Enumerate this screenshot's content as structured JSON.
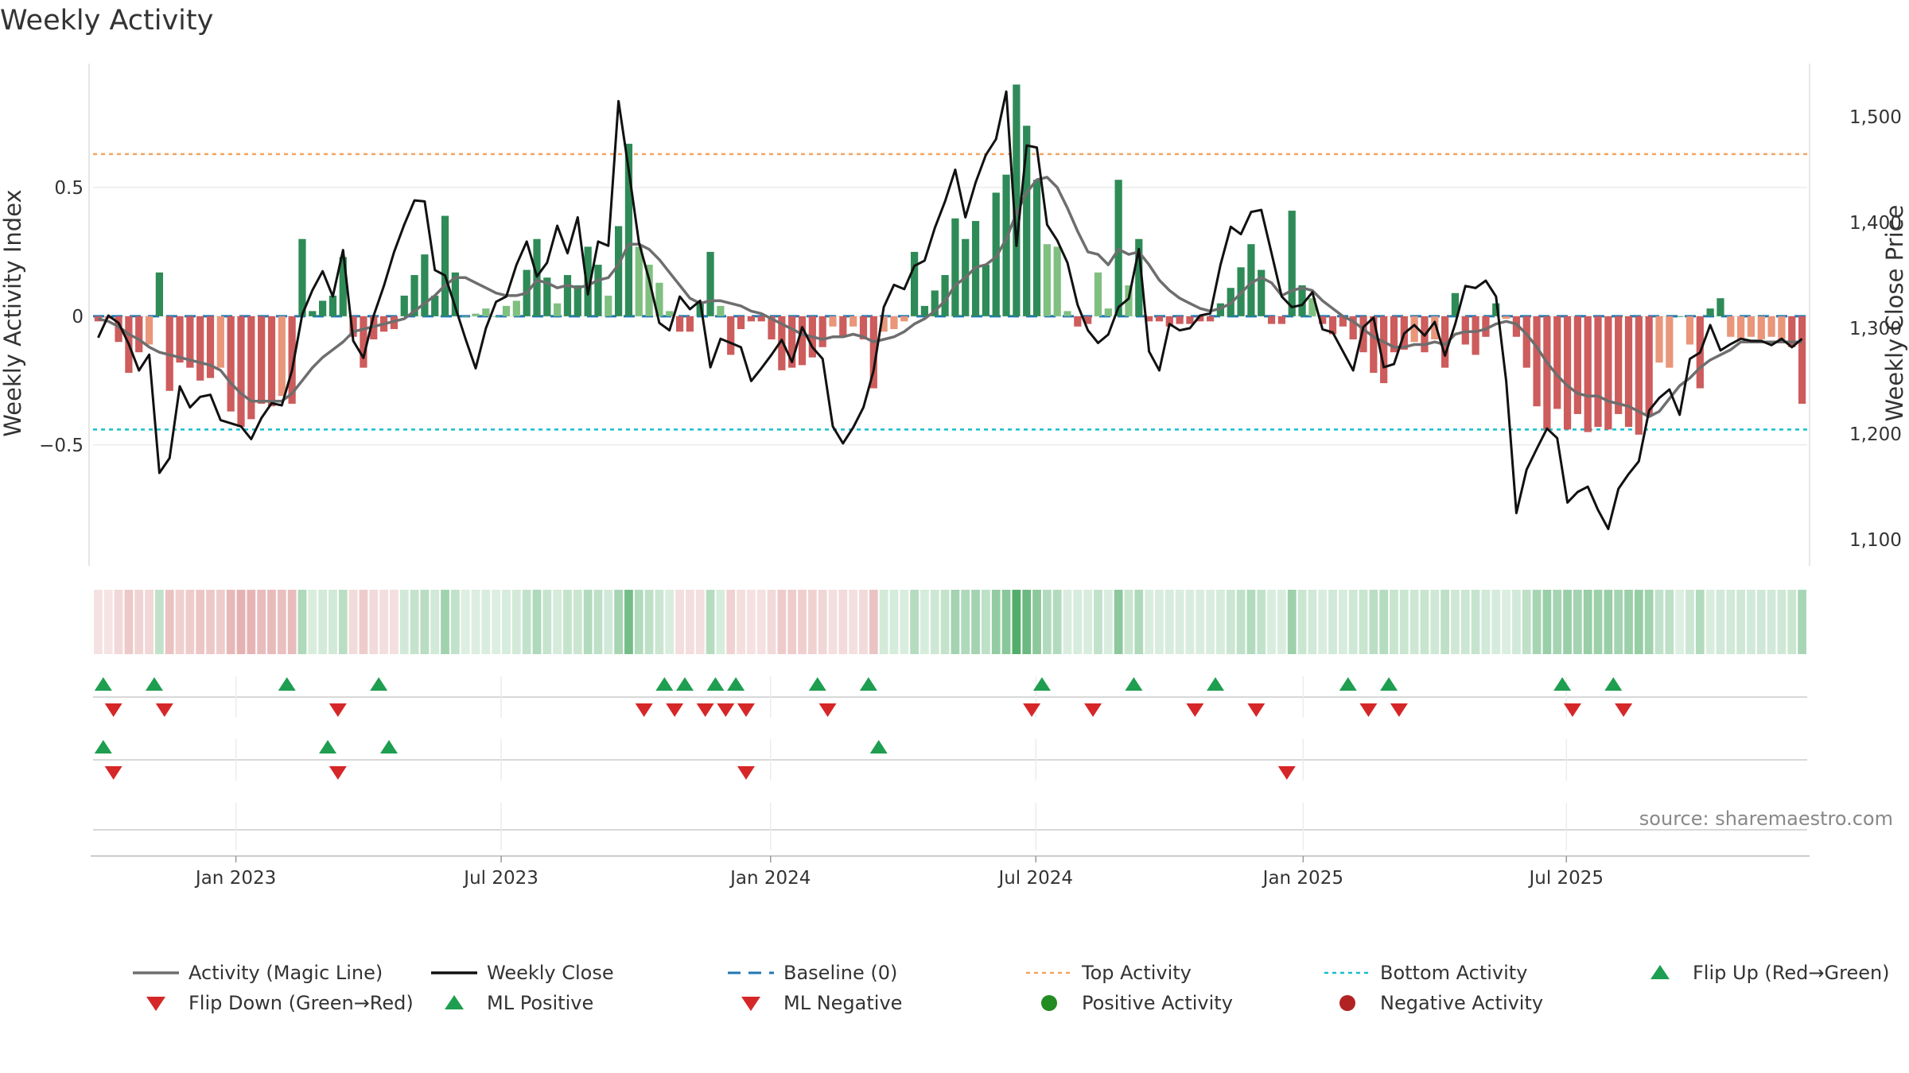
{
  "title": "Weekly Activity",
  "source": "source: sharemaestro.com",
  "colors": {
    "pos_dark": "#2e8b57",
    "pos_light": "#7fc080",
    "neg_dark": "#cd5c5c",
    "neg_light": "#e9967a",
    "magic": "#6e6e6e",
    "close": "#111111",
    "baseline": "#1f77b4",
    "top": "#f4a460",
    "bottom": "#17becf",
    "flip_up": "#1e9e50",
    "flip_down": "#d62728",
    "pos_dot": "#228b22",
    "neg_dot": "#b22222"
  },
  "chart_data": {
    "type": "combo",
    "title": "Weekly Activity",
    "y_left_label": "Weekly Activity Index",
    "y_right_label": "Weekly Close Price",
    "y_left_range": [
      -0.97,
      1.0
    ],
    "y_right_range": [
      1075,
      1555
    ],
    "y_left_ticks": [
      {
        "v": 0.5,
        "label": "0.5"
      },
      {
        "v": 0,
        "label": "0"
      },
      {
        "v": -0.5,
        "label": "−0.5"
      }
    ],
    "y_right_ticks": [
      {
        "v": 1500,
        "label": "1,500"
      },
      {
        "v": 1400,
        "label": "1,400"
      },
      {
        "v": 1300,
        "label": "1,300"
      },
      {
        "v": 1200,
        "label": "1,200"
      },
      {
        "v": 1100,
        "label": "1,100"
      }
    ],
    "x_ticks": [
      {
        "week": 14,
        "label": "Jan 2023"
      },
      {
        "week": 40,
        "label": "Jul 2023"
      },
      {
        "week": 66.4,
        "label": "Jan 2024"
      },
      {
        "week": 92.4,
        "label": "Jul 2024"
      },
      {
        "week": 118.6,
        "label": "Jan 2025"
      },
      {
        "week": 144.4,
        "label": "Jul 2025"
      }
    ],
    "top_activity": 0.63,
    "bottom_activity": -0.44,
    "activity": [
      -0.02,
      -0.01,
      -0.1,
      -0.22,
      -0.14,
      -0.11,
      0.17,
      -0.29,
      -0.18,
      -0.2,
      -0.25,
      -0.24,
      -0.2,
      -0.37,
      -0.43,
      -0.4,
      -0.34,
      -0.35,
      -0.31,
      -0.34,
      0.3,
      0.02,
      0.06,
      0.08,
      0.23,
      -0.08,
      -0.2,
      -0.09,
      -0.06,
      -0.05,
      0.08,
      0.16,
      0.24,
      0.08,
      0.39,
      0.17,
      0.0,
      0.01,
      0.03,
      0.0,
      0.04,
      0.06,
      0.18,
      0.3,
      0.15,
      0.05,
      0.16,
      0.12,
      0.27,
      0.2,
      0.08,
      0.35,
      0.67,
      0.27,
      0.2,
      0.13,
      0.02,
      -0.06,
      -0.06,
      0.05,
      0.25,
      0.04,
      -0.15,
      -0.05,
      -0.02,
      -0.02,
      -0.09,
      -0.21,
      -0.2,
      -0.19,
      -0.16,
      -0.12,
      -0.04,
      -0.08,
      -0.04,
      -0.09,
      -0.28,
      -0.06,
      -0.05,
      -0.02,
      0.25,
      0.04,
      0.1,
      0.16,
      0.38,
      0.3,
      0.37,
      0.2,
      0.48,
      0.55,
      0.9,
      0.74,
      0.53,
      0.28,
      0.27,
      0.02,
      -0.04,
      -0.03,
      0.17,
      0.03,
      0.53,
      0.12,
      0.3,
      -0.02,
      -0.02,
      -0.04,
      -0.03,
      -0.03,
      -0.02,
      -0.02,
      0.05,
      0.11,
      0.19,
      0.28,
      0.18,
      -0.03,
      -0.03,
      0.41,
      0.12,
      0.07,
      -0.03,
      -0.07,
      -0.04,
      -0.09,
      -0.14,
      -0.22,
      -0.26,
      -0.14,
      -0.13,
      -0.1,
      -0.14,
      -0.09,
      -0.2,
      0.09,
      -0.11,
      -0.15,
      -0.08,
      0.05,
      -0.01,
      -0.08,
      -0.2,
      -0.35,
      -0.44,
      -0.36,
      -0.44,
      -0.38,
      -0.45,
      -0.43,
      -0.44,
      -0.38,
      -0.43,
      -0.46,
      -0.39,
      -0.18,
      -0.2,
      0.0,
      -0.11,
      -0.28,
      0.03,
      0.07,
      -0.08,
      -0.09,
      -0.08,
      -0.09,
      -0.08,
      -0.09,
      -0.12,
      -0.34
    ],
    "magic_line": [
      -0.01,
      -0.02,
      -0.04,
      -0.07,
      -0.09,
      -0.12,
      -0.14,
      -0.15,
      -0.16,
      -0.17,
      -0.18,
      -0.19,
      -0.21,
      -0.26,
      -0.3,
      -0.33,
      -0.33,
      -0.33,
      -0.33,
      -0.3,
      -0.25,
      -0.2,
      -0.16,
      -0.13,
      -0.1,
      -0.06,
      -0.05,
      -0.04,
      -0.03,
      -0.02,
      -0.01,
      0.02,
      0.05,
      0.08,
      0.12,
      0.15,
      0.15,
      0.13,
      0.11,
      0.09,
      0.08,
      0.08,
      0.09,
      0.14,
      0.13,
      0.11,
      0.12,
      0.11,
      0.12,
      0.14,
      0.15,
      0.2,
      0.28,
      0.28,
      0.26,
      0.22,
      0.17,
      0.12,
      0.07,
      0.05,
      0.06,
      0.06,
      0.05,
      0.04,
      0.02,
      0.01,
      -0.01,
      -0.03,
      -0.05,
      -0.07,
      -0.08,
      -0.09,
      -0.08,
      -0.08,
      -0.07,
      -0.08,
      -0.1,
      -0.09,
      -0.08,
      -0.06,
      -0.03,
      -0.01,
      0.02,
      0.06,
      0.12,
      0.15,
      0.19,
      0.2,
      0.23,
      0.3,
      0.4,
      0.48,
      0.53,
      0.54,
      0.5,
      0.42,
      0.33,
      0.25,
      0.24,
      0.2,
      0.26,
      0.24,
      0.25,
      0.2,
      0.14,
      0.1,
      0.07,
      0.05,
      0.03,
      0.02,
      0.03,
      0.05,
      0.09,
      0.13,
      0.15,
      0.13,
      0.08,
      0.1,
      0.11,
      0.1,
      0.06,
      0.03,
      0.0,
      -0.02,
      -0.05,
      -0.08,
      -0.1,
      -0.12,
      -0.12,
      -0.11,
      -0.11,
      -0.1,
      -0.11,
      -0.07,
      -0.06,
      -0.06,
      -0.05,
      -0.03,
      -0.02,
      -0.03,
      -0.07,
      -0.12,
      -0.18,
      -0.23,
      -0.27,
      -0.3,
      -0.31,
      -0.31,
      -0.33,
      -0.34,
      -0.35,
      -0.37,
      -0.39,
      -0.37,
      -0.32,
      -0.27,
      -0.24,
      -0.2,
      -0.17,
      -0.15,
      -0.13,
      -0.1,
      -0.1,
      -0.1,
      -0.1,
      -0.1,
      -0.1,
      -0.1
    ],
    "weekly_close": [
      1291,
      1312,
      1305,
      1285,
      1260,
      1275,
      1163,
      1177,
      1245,
      1225,
      1235,
      1237,
      1213,
      1210,
      1207,
      1195,
      1215,
      1229,
      1227,
      1260,
      1313,
      1336,
      1354,
      1330,
      1374,
      1288,
      1272,
      1312,
      1340,
      1372,
      1398,
      1421,
      1420,
      1355,
      1350,
      1320,
      1290,
      1262,
      1300,
      1325,
      1330,
      1360,
      1382,
      1349,
      1362,
      1397,
      1371,
      1405,
      1332,
      1382,
      1378,
      1515,
      1450,
      1381,
      1346,
      1305,
      1298,
      1330,
      1318,
      1326,
      1263,
      1290,
      1286,
      1282,
      1250,
      1262,
      1275,
      1289,
      1268,
      1301,
      1282,
      1271,
      1207,
      1191,
      1206,
      1225,
      1260,
      1320,
      1341,
      1337,
      1359,
      1364,
      1395,
      1420,
      1450,
      1405,
      1438,
      1464,
      1479,
      1524,
      1378,
      1473,
      1471,
      1398,
      1383,
      1362,
      1322,
      1298,
      1286,
      1294,
      1320,
      1328,
      1375,
      1278,
      1260,
      1304,
      1298,
      1300,
      1312,
      1314,
      1360,
      1396,
      1389,
      1410,
      1412,
      1371,
      1330,
      1320,
      1322,
      1334,
      1299,
      1296,
      1278,
      1260,
      1301,
      1310,
      1263,
      1266,
      1295,
      1303,
      1293,
      1306,
      1274,
      1304,
      1340,
      1338,
      1345,
      1330,
      1250,
      1125,
      1166,
      1186,
      1205,
      1196,
      1135,
      1145,
      1150,
      1128,
      1110,
      1148,
      1162,
      1174,
      1222,
      1234,
      1242,
      1218,
      1271,
      1277,
      1303,
      1279,
      1285,
      1290,
      1288,
      1288,
      1284,
      1290,
      1282,
      1290
    ],
    "strip_green_idx": [
      6,
      20,
      21,
      22,
      23,
      24,
      30,
      31,
      32,
      33,
      34,
      35,
      36,
      37,
      38,
      39,
      40,
      41,
      42,
      43,
      44,
      45,
      46,
      47,
      48,
      49,
      50,
      51,
      52,
      53,
      54,
      55,
      56,
      60,
      61,
      77,
      78,
      79,
      80,
      81,
      82,
      83,
      84,
      85,
      86,
      87,
      88,
      89,
      90,
      91,
      92,
      93,
      94,
      95,
      96,
      97,
      98,
      99,
      100,
      101,
      102,
      103,
      104,
      105,
      106,
      107,
      108,
      109,
      110,
      111,
      112,
      113,
      114,
      115,
      116,
      117,
      118,
      119,
      120,
      121,
      122,
      123,
      124,
      125,
      126,
      127,
      128,
      129,
      130,
      131,
      132,
      133,
      134,
      135,
      136,
      137,
      138,
      139,
      140,
      141,
      142,
      143,
      144,
      145,
      146,
      147,
      148,
      149,
      150,
      151,
      152,
      153,
      154,
      155,
      156,
      157,
      158,
      159,
      160,
      161,
      162,
      163,
      164,
      165,
      166,
      167
    ],
    "flip_up_weeks": [
      1,
      6,
      19,
      28,
      56,
      58,
      61,
      63,
      71,
      76,
      93,
      102,
      110,
      123,
      127,
      144,
      149
    ],
    "flip_down_weeks": [
      2,
      7,
      24,
      54,
      57,
      60,
      62,
      64,
      72,
      92,
      98,
      108,
      114,
      125,
      128,
      145,
      150
    ],
    "ml_positive_weeks": [
      1,
      23,
      29,
      77
    ],
    "ml_negative_weeks": [
      2,
      24,
      64,
      117
    ],
    "legend": [
      {
        "kind": "line",
        "label": "Activity (Magic Line)",
        "color_key": "magic"
      },
      {
        "kind": "line",
        "label": "Weekly Close",
        "color_key": "close"
      },
      {
        "kind": "dash",
        "label": "Baseline (0)",
        "color_key": "baseline"
      },
      {
        "kind": "dot_line",
        "label": "Top Activity",
        "color_key": "top"
      },
      {
        "kind": "dot_line",
        "label": "Bottom Activity",
        "color_key": "bottom"
      },
      {
        "kind": "tri_up",
        "label": "Flip Up (Red→Green)",
        "color_key": "flip_up"
      },
      {
        "kind": "tri_down",
        "label": "Flip Down (Green→Red)",
        "color_key": "flip_down"
      },
      {
        "kind": "tri_up",
        "label": "ML Positive",
        "color_key": "flip_up"
      },
      {
        "kind": "tri_down",
        "label": "ML Negative",
        "color_key": "flip_down"
      },
      {
        "kind": "circle",
        "label": "Positive Activity",
        "color_key": "pos_dot"
      },
      {
        "kind": "circle",
        "label": "Negative Activity",
        "color_key": "neg_dot"
      }
    ]
  }
}
